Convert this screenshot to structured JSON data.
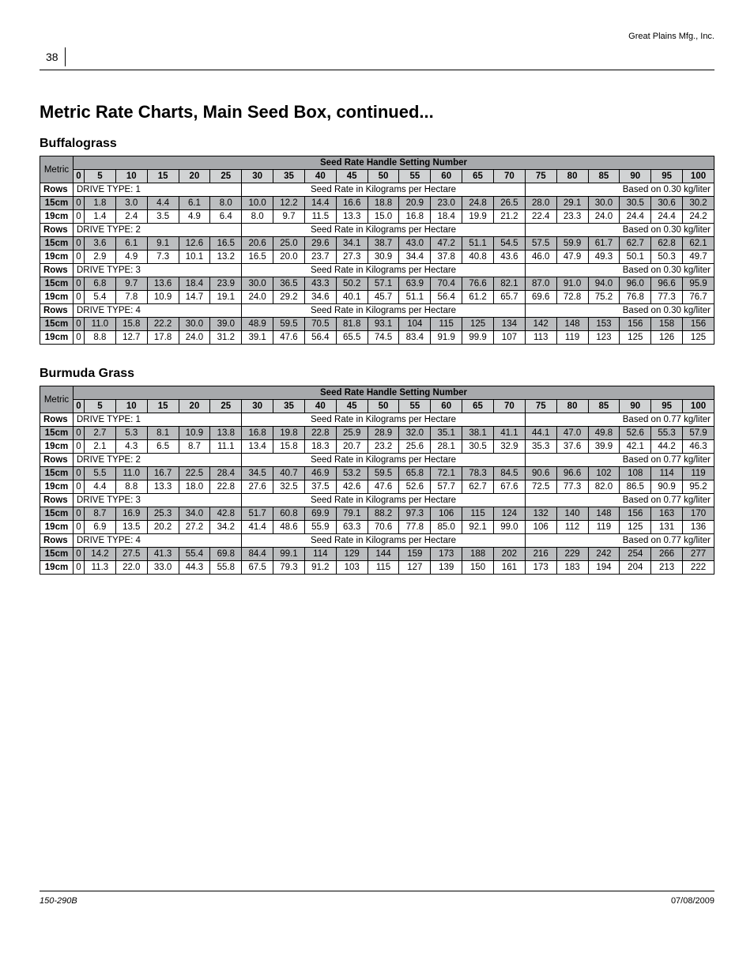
{
  "page": {
    "company": "Great Plains Mfg., Inc.",
    "number": "38",
    "title": "Metric Rate Charts, Main Seed Box, continued...",
    "footer_left": "150-290B",
    "footer_right": "07/08/2009"
  },
  "settings_header_label": "Seed Rate Handle Setting Number",
  "metric_label": "Metric",
  "rows_label": "Rows",
  "setting_numbers": [
    "0",
    "5",
    "10",
    "15",
    "20",
    "25",
    "30",
    "35",
    "40",
    "45",
    "50",
    "55",
    "60",
    "65",
    "70",
    "75",
    "80",
    "85",
    "90",
    "95",
    "100"
  ],
  "drive_mid_text": "Seed Rate in Kilograms per Hectare",
  "sections": [
    {
      "title": "Buffalograss",
      "density_note": "Based on 0.30 kg/liter",
      "drives": [
        {
          "label": "DRIVE TYPE: 1",
          "rows": [
            {
              "spacing": "15cm",
              "values": [
                "0",
                "1.8",
                "3.0",
                "4.4",
                "6.1",
                "8.0",
                "10.0",
                "12.2",
                "14.4",
                "16.6",
                "18.8",
                "20.9",
                "23.0",
                "24.8",
                "26.5",
                "28.0",
                "29.1",
                "30.0",
                "30.5",
                "30.6",
                "30.2"
              ]
            },
            {
              "spacing": "19cm",
              "values": [
                "0",
                "1.4",
                "2.4",
                "3.5",
                "4.9",
                "6.4",
                "8.0",
                "9.7",
                "11.5",
                "13.3",
                "15.0",
                "16.8",
                "18.4",
                "19.9",
                "21.2",
                "22.4",
                "23.3",
                "24.0",
                "24.4",
                "24.4",
                "24.2"
              ]
            }
          ]
        },
        {
          "label": "DRIVE TYPE: 2",
          "rows": [
            {
              "spacing": "15cm",
              "values": [
                "0",
                "3.6",
                "6.1",
                "9.1",
                "12.6",
                "16.5",
                "20.6",
                "25.0",
                "29.6",
                "34.1",
                "38.7",
                "43.0",
                "47.2",
                "51.1",
                "54.5",
                "57.5",
                "59.9",
                "61.7",
                "62.7",
                "62.8",
                "62.1"
              ]
            },
            {
              "spacing": "19cm",
              "values": [
                "0",
                "2.9",
                "4.9",
                "7.3",
                "10.1",
                "13.2",
                "16.5",
                "20.0",
                "23.7",
                "27.3",
                "30.9",
                "34.4",
                "37.8",
                "40.8",
                "43.6",
                "46.0",
                "47.9",
                "49.3",
                "50.1",
                "50.3",
                "49.7"
              ]
            }
          ]
        },
        {
          "label": "DRIVE TYPE: 3",
          "rows": [
            {
              "spacing": "15cm",
              "values": [
                "0",
                "6.8",
                "9.7",
                "13.6",
                "18.4",
                "23.9",
                "30.0",
                "36.5",
                "43.3",
                "50.2",
                "57.1",
                "63.9",
                "70.4",
                "76.6",
                "82.1",
                "87.0",
                "91.0",
                "94.0",
                "96.0",
                "96.6",
                "95.9"
              ]
            },
            {
              "spacing": "19cm",
              "values": [
                "0",
                "5.4",
                "7.8",
                "10.9",
                "14.7",
                "19.1",
                "24.0",
                "29.2",
                "34.6",
                "40.1",
                "45.7",
                "51.1",
                "56.4",
                "61.2",
                "65.7",
                "69.6",
                "72.8",
                "75.2",
                "76.8",
                "77.3",
                "76.7"
              ]
            }
          ]
        },
        {
          "label": "DRIVE TYPE: 4",
          "rows": [
            {
              "spacing": "15cm",
              "values": [
                "0",
                "11.0",
                "15.8",
                "22.2",
                "30.0",
                "39.0",
                "48.9",
                "59.5",
                "70.5",
                "81.8",
                "93.1",
                "104",
                "115",
                "125",
                "134",
                "142",
                "148",
                "153",
                "156",
                "158",
                "156"
              ]
            },
            {
              "spacing": "19cm",
              "values": [
                "0",
                "8.8",
                "12.7",
                "17.8",
                "24.0",
                "31.2",
                "39.1",
                "47.6",
                "56.4",
                "65.5",
                "74.5",
                "83.4",
                "91.9",
                "99.9",
                "107",
                "113",
                "119",
                "123",
                "125",
                "126",
                "125"
              ]
            }
          ]
        }
      ]
    },
    {
      "title": "Burmuda Grass",
      "density_note": "Based on 0.77 kg/liter",
      "drives": [
        {
          "label": "DRIVE TYPE: 1",
          "rows": [
            {
              "spacing": "15cm",
              "values": [
                "0",
                "2.7",
                "5.3",
                "8.1",
                "10.9",
                "13.8",
                "16.8",
                "19.8",
                "22.8",
                "25.9",
                "28.9",
                "32.0",
                "35.1",
                "38.1",
                "41.1",
                "44.1",
                "47.0",
                "49.8",
                "52.6",
                "55.3",
                "57.9"
              ]
            },
            {
              "spacing": "19cm",
              "values": [
                "0",
                "2.1",
                "4.3",
                "6.5",
                "8.7",
                "11.1",
                "13.4",
                "15.8",
                "18.3",
                "20.7",
                "23.2",
                "25.6",
                "28.1",
                "30.5",
                "32.9",
                "35.3",
                "37.6",
                "39.9",
                "42.1",
                "44.2",
                "46.3"
              ]
            }
          ]
        },
        {
          "label": "DRIVE TYPE: 2",
          "rows": [
            {
              "spacing": "15cm",
              "values": [
                "0",
                "5.5",
                "11.0",
                "16.7",
                "22.5",
                "28.4",
                "34.5",
                "40.7",
                "46.9",
                "53.2",
                "59.5",
                "65.8",
                "72.1",
                "78.3",
                "84.5",
                "90.6",
                "96.6",
                "102",
                "108",
                "114",
                "119"
              ]
            },
            {
              "spacing": "19cm",
              "values": [
                "0",
                "4.4",
                "8.8",
                "13.3",
                "18.0",
                "22.8",
                "27.6",
                "32.5",
                "37.5",
                "42.6",
                "47.6",
                "52.6",
                "57.7",
                "62.7",
                "67.6",
                "72.5",
                "77.3",
                "82.0",
                "86.5",
                "90.9",
                "95.2"
              ]
            }
          ]
        },
        {
          "label": "DRIVE TYPE: 3",
          "rows": [
            {
              "spacing": "15cm",
              "values": [
                "0",
                "8.7",
                "16.9",
                "25.3",
                "34.0",
                "42.8",
                "51.7",
                "60.8",
                "69.9",
                "79.1",
                "88.2",
                "97.3",
                "106",
                "115",
                "124",
                "132",
                "140",
                "148",
                "156",
                "163",
                "170"
              ]
            },
            {
              "spacing": "19cm",
              "values": [
                "0",
                "6.9",
                "13.5",
                "20.2",
                "27.2",
                "34.2",
                "41.4",
                "48.6",
                "55.9",
                "63.3",
                "70.6",
                "77.8",
                "85.0",
                "92.1",
                "99.0",
                "106",
                "112",
                "119",
                "125",
                "131",
                "136"
              ]
            }
          ]
        },
        {
          "label": "DRIVE TYPE: 4",
          "rows": [
            {
              "spacing": "15cm",
              "values": [
                "0",
                "14.2",
                "27.5",
                "41.3",
                "55.4",
                "69.8",
                "84.4",
                "99.1",
                "114",
                "129",
                "144",
                "159",
                "173",
                "188",
                "202",
                "216",
                "229",
                "242",
                "254",
                "266",
                "277"
              ]
            },
            {
              "spacing": "19cm",
              "values": [
                "0",
                "11.3",
                "22.0",
                "33.0",
                "44.3",
                "55.8",
                "67.5",
                "79.3",
                "91.2",
                "103",
                "115",
                "127",
                "139",
                "150",
                "161",
                "173",
                "183",
                "194",
                "204",
                "213",
                "222"
              ]
            }
          ]
        }
      ]
    }
  ]
}
